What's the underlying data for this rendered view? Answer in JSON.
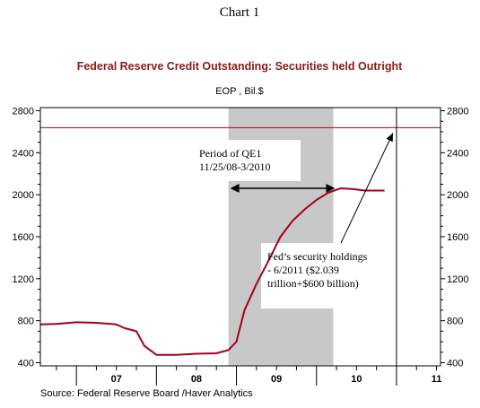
{
  "chart_label": "Chart 1",
  "colors": {
    "series": "#a3001e",
    "title": "#8b1a1a",
    "shade": "#c8c8c8",
    "axis": "#000000"
  },
  "chart_data": {
    "type": "line",
    "title": "Federal Reserve Credit Outstanding: Securities held Outright",
    "subtitle": "EOP , Bil.$",
    "xlabel": "",
    "ylabel": "",
    "x_tick_labels": [
      "07",
      "08",
      "09",
      "10",
      "11"
    ],
    "y_ticks": [
      400,
      800,
      1200,
      1600,
      2000,
      2400,
      2800
    ],
    "xlim": [
      2006.55,
      2011.55
    ],
    "ylim": [
      370,
      2830
    ],
    "grid": false,
    "source": "Source:  Federal Reserve Board /Haver Analytics",
    "shaded_period": {
      "start": 2008.9,
      "end": 2010.21
    },
    "reference_line": {
      "value": 2639
    },
    "vertical_marker": {
      "x": 2011.0
    },
    "annotations": [
      {
        "text_lines": [
          "Period of QE1",
          "11/25/08-3/2010"
        ]
      },
      {
        "text_lines": [
          "Fed’s security holdings",
          "- 6/2011 ($2.039",
          "trillion+$600 billion)"
        ]
      }
    ],
    "series": [
      {
        "name": "",
        "x": [
          2006.55,
          2006.75,
          2007.0,
          2007.25,
          2007.5,
          2007.6,
          2007.75,
          2007.85,
          2008.0,
          2008.25,
          2008.5,
          2008.75,
          2008.9,
          2009.0,
          2009.1,
          2009.25,
          2009.4,
          2009.55,
          2009.7,
          2009.85,
          2010.0,
          2010.15,
          2010.3,
          2010.45,
          2010.6,
          2010.75,
          2010.85
        ],
        "y": [
          765,
          770,
          785,
          780,
          765,
          730,
          700,
          560,
          475,
          475,
          485,
          490,
          520,
          600,
          900,
          1150,
          1370,
          1600,
          1750,
          1860,
          1950,
          2020,
          2060,
          2055,
          2040,
          2040,
          2040
        ]
      }
    ]
  }
}
